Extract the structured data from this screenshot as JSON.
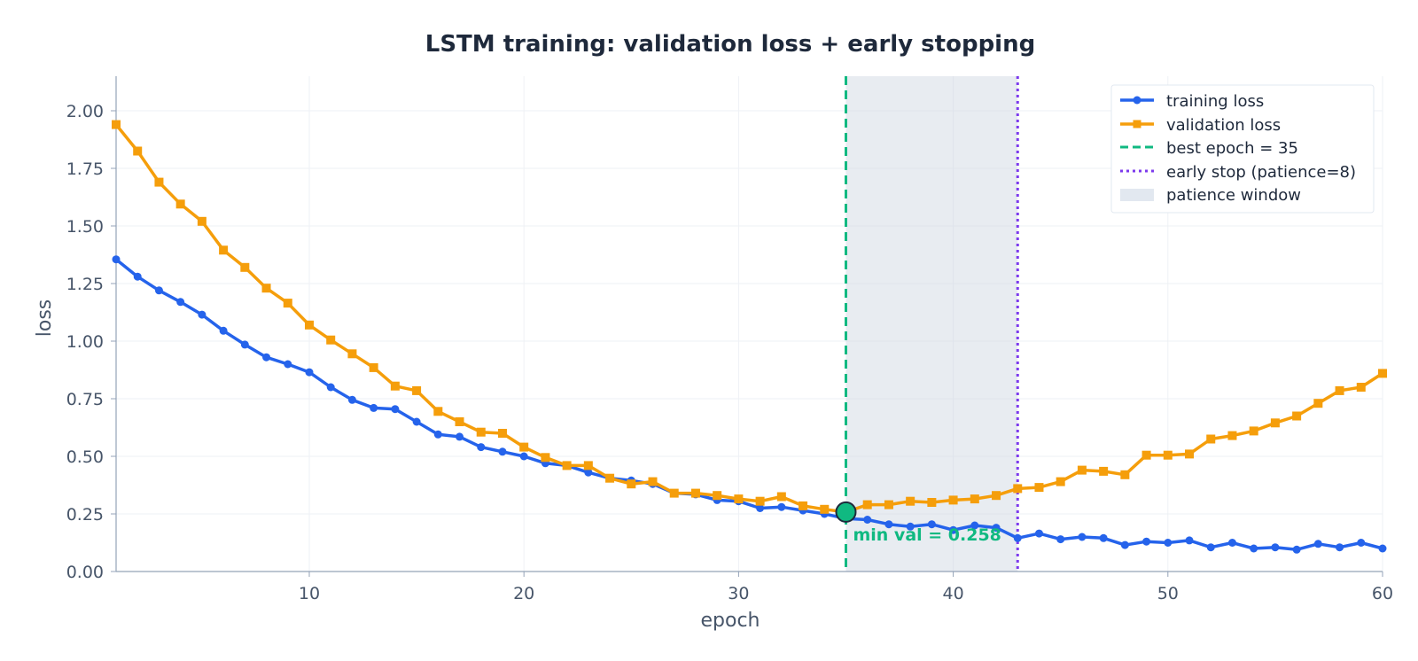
{
  "chart_data": {
    "type": "line",
    "title": "LSTM training: validation loss + early stopping",
    "xlabel": "epoch",
    "ylabel": "loss",
    "xlim": [
      1,
      60
    ],
    "ylim": [
      0,
      2.15
    ],
    "x_ticks": [
      10,
      20,
      30,
      40,
      50,
      60
    ],
    "y_ticks": [
      0.0,
      0.25,
      0.5,
      0.75,
      1.0,
      1.25,
      1.5,
      1.75,
      2.0
    ],
    "y_tick_labels": [
      "0.00",
      "0.25",
      "0.50",
      "0.75",
      "1.00",
      "1.25",
      "1.50",
      "1.75",
      "2.00"
    ],
    "grid": true,
    "legend_position": "top-right",
    "x": [
      1,
      2,
      3,
      4,
      5,
      6,
      7,
      8,
      9,
      10,
      11,
      12,
      13,
      14,
      15,
      16,
      17,
      18,
      19,
      20,
      21,
      22,
      23,
      24,
      25,
      26,
      27,
      28,
      29,
      30,
      31,
      32,
      33,
      34,
      35,
      36,
      37,
      38,
      39,
      40,
      41,
      42,
      43,
      44,
      45,
      46,
      47,
      48,
      49,
      50,
      51,
      52,
      53,
      54,
      55,
      56,
      57,
      58,
      59,
      60
    ],
    "series": [
      {
        "name": "training loss",
        "color": "#2563eb",
        "marker": "circle",
        "values": [
          1.355,
          1.28,
          1.22,
          1.17,
          1.115,
          1.045,
          0.985,
          0.93,
          0.9,
          0.865,
          0.8,
          0.745,
          0.71,
          0.705,
          0.65,
          0.595,
          0.585,
          0.54,
          0.52,
          0.5,
          0.47,
          0.46,
          0.43,
          0.405,
          0.395,
          0.38,
          0.34,
          0.335,
          0.31,
          0.305,
          0.275,
          0.28,
          0.265,
          0.25,
          0.23,
          0.225,
          0.205,
          0.195,
          0.205,
          0.18,
          0.2,
          0.19,
          0.145,
          0.165,
          0.14,
          0.15,
          0.145,
          0.115,
          0.13,
          0.125,
          0.135,
          0.105,
          0.125,
          0.1,
          0.105,
          0.095,
          0.12,
          0.105,
          0.125,
          0.1
        ]
      },
      {
        "name": "validation loss",
        "color": "#f59e0b",
        "marker": "square",
        "values": [
          1.94,
          1.825,
          1.69,
          1.595,
          1.52,
          1.395,
          1.32,
          1.23,
          1.165,
          1.07,
          1.005,
          0.945,
          0.885,
          0.805,
          0.785,
          0.695,
          0.65,
          0.605,
          0.6,
          0.54,
          0.495,
          0.46,
          0.46,
          0.405,
          0.38,
          0.39,
          0.34,
          0.34,
          0.33,
          0.315,
          0.305,
          0.325,
          0.285,
          0.27,
          0.258,
          0.29,
          0.29,
          0.305,
          0.3,
          0.31,
          0.315,
          0.33,
          0.36,
          0.365,
          0.39,
          0.44,
          0.435,
          0.42,
          0.505,
          0.505,
          0.51,
          0.575,
          0.59,
          0.61,
          0.645,
          0.675,
          0.73,
          0.785,
          0.8,
          0.86
        ]
      }
    ],
    "best_epoch": {
      "epoch": 35,
      "label": "best epoch = 35",
      "color": "#10b981"
    },
    "early_stop": {
      "epoch": 43,
      "label": "early stop (patience=8)",
      "color": "#7c3aed"
    },
    "patience_window": {
      "from": 35,
      "to": 43,
      "label": "patience window",
      "color": "#cbd5e1"
    },
    "min_point": {
      "epoch": 35,
      "value": 0.258,
      "label": "min val = 0.258",
      "color": "#10b981"
    }
  }
}
